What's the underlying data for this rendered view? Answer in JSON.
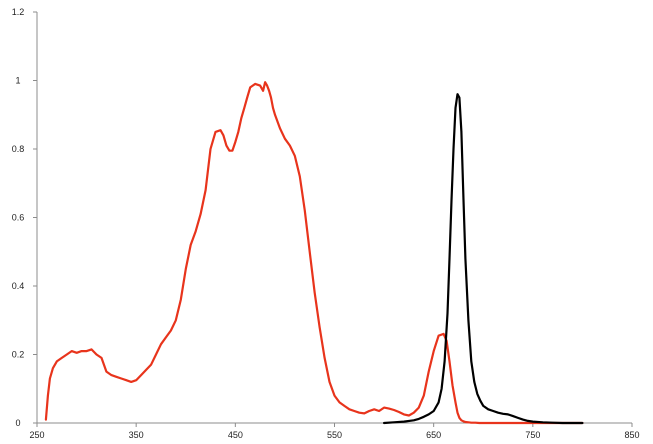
{
  "chart_data": {
    "type": "line",
    "title": "",
    "xlabel": "",
    "ylabel": "",
    "xlim": [
      250,
      850
    ],
    "ylim": [
      0,
      1.2
    ],
    "x_ticks": [
      "250",
      "350",
      "450",
      "550",
      "650",
      "750",
      "850"
    ],
    "y_ticks": [
      "0",
      "0.2",
      "0.4",
      "0.6",
      "0.8",
      "1",
      "1.2"
    ],
    "grid": false,
    "legend": "none",
    "series": [
      {
        "color": "#e8341c",
        "x": [
          259,
          261,
          263,
          266,
          270,
          275,
          280,
          285,
          290,
          295,
          300,
          305,
          310,
          315,
          320,
          325,
          330,
          335,
          340,
          345,
          350,
          355,
          360,
          365,
          370,
          375,
          380,
          385,
          390,
          395,
          400,
          405,
          410,
          415,
          420,
          425,
          430,
          435,
          438,
          441,
          444,
          447,
          450,
          453,
          456,
          459,
          462,
          465,
          470,
          475,
          478,
          480,
          482,
          484,
          486,
          488,
          490,
          495,
          500,
          505,
          510,
          515,
          520,
          525,
          530,
          535,
          540,
          545,
          550,
          555,
          560,
          565,
          570,
          575,
          580,
          585,
          590,
          595,
          600,
          605,
          610,
          615,
          620,
          625,
          630,
          635,
          640,
          645,
          650,
          655,
          660,
          663,
          666,
          669,
          672,
          674,
          676,
          678,
          680,
          682,
          685,
          688,
          692,
          696,
          700,
          710,
          720,
          740,
          760,
          780,
          800
        ],
        "y": [
          0.01,
          0.08,
          0.13,
          0.16,
          0.18,
          0.19,
          0.2,
          0.21,
          0.205,
          0.21,
          0.21,
          0.215,
          0.2,
          0.19,
          0.15,
          0.14,
          0.135,
          0.13,
          0.125,
          0.12,
          0.125,
          0.14,
          0.155,
          0.17,
          0.2,
          0.23,
          0.25,
          0.27,
          0.3,
          0.36,
          0.45,
          0.52,
          0.56,
          0.61,
          0.68,
          0.8,
          0.85,
          0.855,
          0.84,
          0.81,
          0.795,
          0.795,
          0.82,
          0.85,
          0.89,
          0.92,
          0.95,
          0.98,
          0.99,
          0.985,
          0.97,
          0.995,
          0.985,
          0.97,
          0.95,
          0.92,
          0.9,
          0.86,
          0.83,
          0.81,
          0.78,
          0.72,
          0.62,
          0.5,
          0.38,
          0.28,
          0.19,
          0.12,
          0.08,
          0.06,
          0.05,
          0.04,
          0.035,
          0.03,
          0.028,
          0.035,
          0.04,
          0.035,
          0.045,
          0.042,
          0.038,
          0.032,
          0.025,
          0.022,
          0.03,
          0.045,
          0.08,
          0.15,
          0.21,
          0.255,
          0.26,
          0.24,
          0.18,
          0.11,
          0.06,
          0.03,
          0.015,
          0.008,
          0.005,
          0.003,
          0.002,
          0.001,
          0.001,
          0.0,
          0.0,
          0.0,
          0.0,
          0.0,
          0.0,
          0.0,
          0.0
        ]
      },
      {
        "color": "#000000",
        "x": [
          600,
          610,
          620,
          630,
          635,
          640,
          645,
          650,
          655,
          658,
          661,
          664,
          666,
          668,
          670,
          672,
          674,
          676,
          678,
          680,
          682,
          685,
          688,
          691,
          694,
          697,
          700,
          705,
          710,
          715,
          720,
          725,
          730,
          735,
          740,
          745,
          750,
          760,
          770,
          780,
          790,
          800
        ],
        "y": [
          0.0,
          0.002,
          0.004,
          0.008,
          0.012,
          0.018,
          0.025,
          0.035,
          0.06,
          0.1,
          0.18,
          0.32,
          0.48,
          0.65,
          0.8,
          0.92,
          0.96,
          0.95,
          0.85,
          0.66,
          0.48,
          0.3,
          0.18,
          0.12,
          0.085,
          0.065,
          0.05,
          0.04,
          0.035,
          0.03,
          0.027,
          0.025,
          0.02,
          0.015,
          0.01,
          0.006,
          0.004,
          0.002,
          0.001,
          0.0,
          0.0,
          0.0
        ]
      }
    ]
  }
}
